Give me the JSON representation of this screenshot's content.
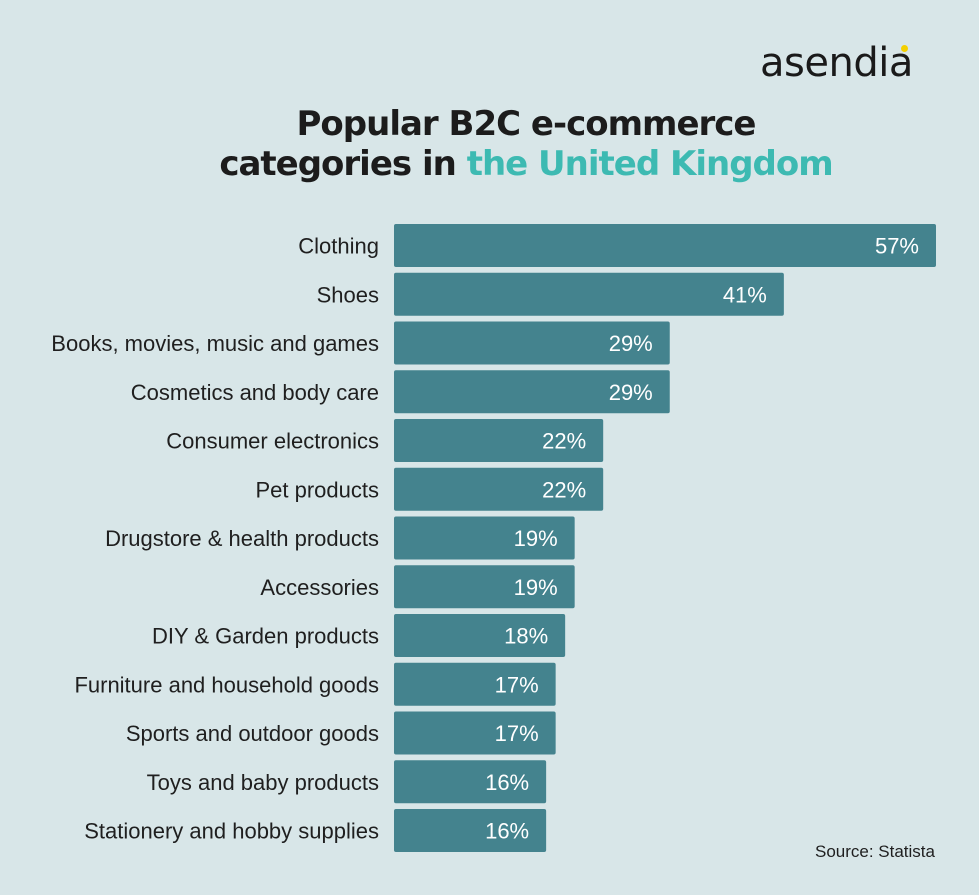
{
  "brand": {
    "logo_text": "asendia",
    "dot_color": "#f4d000"
  },
  "title": {
    "line1": "Popular B2C e-commerce",
    "line2_prefix": "categories in",
    "line2_accent": "the United Kingdom",
    "accent_color": "#3dbab2"
  },
  "source": "Source: Statista",
  "colors": {
    "background": "#d8e6e8",
    "bar": "#44838e"
  },
  "chart_data": {
    "type": "bar",
    "orientation": "horizontal",
    "categories": [
      "Clothing",
      "Shoes",
      "Books, movies, music and games",
      "Cosmetics and  body care",
      "Consumer electronics",
      "Pet products",
      "Drugstore & health products",
      "Accessories",
      "DIY & Garden products",
      "Furniture and household goods",
      "Sports and outdoor goods",
      "Toys and baby products",
      "Stationery and hobby supplies"
    ],
    "values": [
      57,
      41,
      29,
      29,
      22,
      22,
      19,
      19,
      18,
      17,
      17,
      16,
      16
    ],
    "value_labels": [
      "57%",
      "41%",
      "29%",
      "29%",
      "22%",
      "22%",
      "19%",
      "19%",
      "18%",
      "17%",
      "17%",
      "16%",
      "16%"
    ],
    "xlim": [
      0,
      57
    ],
    "grid": false,
    "legend": "none"
  }
}
